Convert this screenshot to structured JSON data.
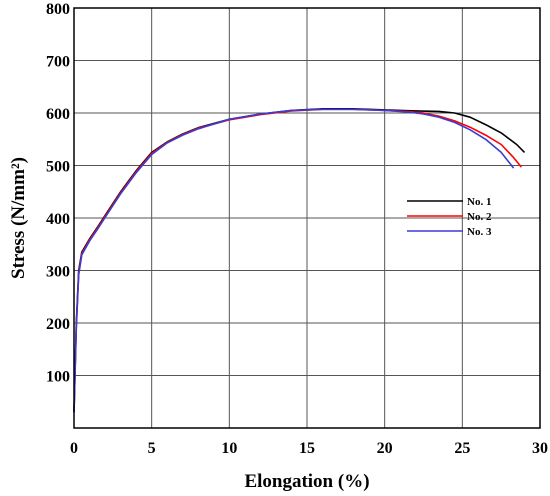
{
  "chart_data": {
    "type": "line",
    "xlabel": "Elongation (%)",
    "ylabel": "Stress (N/mm²)",
    "xlim": [
      0,
      30
    ],
    "ylim": [
      0,
      800
    ],
    "xticks": [
      0,
      5,
      10,
      15,
      20,
      25,
      30
    ],
    "yticks": [
      100,
      200,
      300,
      400,
      500,
      600,
      700,
      800
    ],
    "grid": true,
    "legend_position": "right",
    "series": [
      {
        "name": "No. 1",
        "color": "#000000",
        "x": [
          0.0,
          0.15,
          0.3,
          0.5,
          1.0,
          1.5,
          2.0,
          3.0,
          4.0,
          5.0,
          6.0,
          7.0,
          8.0,
          10.0,
          12.0,
          14.0,
          16.0,
          18.0,
          20.0,
          22.0,
          23.5,
          24.5,
          25.5,
          26.5,
          27.5,
          28.5,
          29.0
        ],
        "y": [
          30,
          200,
          300,
          335,
          360,
          382,
          405,
          450,
          490,
          525,
          545,
          560,
          572,
          588,
          598,
          605,
          608,
          608,
          606,
          604,
          603,
          600,
          592,
          578,
          562,
          540,
          525
        ]
      },
      {
        "name": "No. 2",
        "color": "#ff0000",
        "x": [
          0.0,
          0.15,
          0.3,
          0.5,
          1.0,
          1.5,
          2.0,
          3.0,
          4.0,
          5.0,
          6.0,
          7.0,
          8.0,
          10.0,
          12.0,
          14.0,
          16.0,
          18.0,
          20.0,
          21.5,
          22.5,
          23.5,
          24.5,
          25.5,
          26.5,
          27.5,
          28.3,
          28.8
        ],
        "y": [
          30,
          195,
          295,
          332,
          358,
          380,
          403,
          448,
          488,
          523,
          544,
          559,
          571,
          587,
          597,
          604,
          607,
          607,
          605,
          603,
          600,
          594,
          585,
          573,
          558,
          540,
          515,
          497
        ]
      },
      {
        "name": "No. 3",
        "color": "#3b3bd6",
        "x": [
          0.0,
          0.15,
          0.3,
          0.5,
          1.0,
          1.5,
          2.0,
          3.0,
          4.0,
          5.0,
          6.0,
          7.0,
          8.0,
          10.0,
          12.0,
          14.0,
          16.0,
          18.0,
          20.0,
          21.5,
          22.5,
          23.5,
          24.5,
          25.5,
          26.5,
          27.5,
          28.3
        ],
        "y": [
          30,
          190,
          292,
          330,
          356,
          378,
          401,
          446,
          486,
          521,
          543,
          558,
          570,
          588,
          598,
          605,
          607,
          607,
          605,
          602,
          598,
          592,
          582,
          568,
          550,
          525,
          495
        ]
      }
    ]
  }
}
